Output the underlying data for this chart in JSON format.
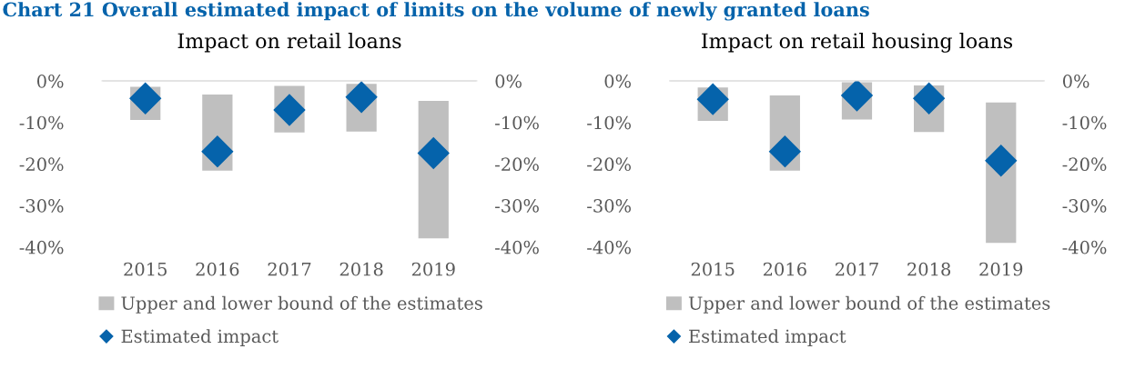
{
  "chart_data": [
    {
      "type": "bar",
      "title": "Impact on retail loans",
      "annotations": [
        "Chart 21 Overall estimated impact of limits on the volume of newly granted loans"
      ],
      "categories": [
        "2015",
        "2016",
        "2017",
        "2018",
        "2019"
      ],
      "series": [
        {
          "name": "Upper and lower bound of the estimates",
          "color": "#bfbfbf",
          "base": [
            -1.4,
            -3.3,
            -1.2,
            -0.7,
            -4.8
          ],
          "values": [
            -8.0,
            -18.3,
            -11.2,
            -11.5,
            -33.1
          ]
        },
        {
          "name": "Estimated impact",
          "type": "scatter",
          "color": "#0563ab",
          "marker": "diamond",
          "values": [
            -4.2,
            -17.0,
            -7.0,
            -3.9,
            -17.4
          ]
        }
      ],
      "ylim": [
        -40,
        0
      ],
      "yticks": [
        {
          "value": 0,
          "label": "0%"
        },
        {
          "value": -10,
          "label": "-10%"
        },
        {
          "value": -20,
          "label": "-20%"
        },
        {
          "value": -30,
          "label": "-30%"
        },
        {
          "value": -40,
          "label": "-40%"
        }
      ],
      "y2lim": [
        -40,
        0
      ],
      "y2ticks": [
        {
          "value": 0,
          "label": "0%"
        },
        {
          "value": -10,
          "label": "-10%"
        },
        {
          "value": -20,
          "label": "-20%"
        },
        {
          "value": -30,
          "label": "-30%"
        },
        {
          "value": -40,
          "label": "-40%"
        }
      ],
      "legend": "bottom",
      "grid": false
    },
    {
      "type": "bar",
      "title": "Impact on retail housing loans",
      "categories": [
        "2015",
        "2016",
        "2017",
        "2018",
        "2019"
      ],
      "series": [
        {
          "name": "Upper and lower bound of the estimates",
          "color": "#bfbfbf",
          "base": [
            -1.6,
            -3.5,
            -0.3,
            -1.1,
            -5.2
          ],
          "values": [
            -8.0,
            -18.1,
            -9.0,
            -11.2,
            -33.8
          ]
        },
        {
          "name": "Estimated impact",
          "type": "scatter",
          "color": "#0563ab",
          "marker": "diamond",
          "values": [
            -4.4,
            -17.0,
            -3.5,
            -4.2,
            -19.2
          ]
        }
      ],
      "ylim": [
        -40,
        0
      ],
      "yticks": [
        {
          "value": 0,
          "label": "0%"
        },
        {
          "value": -10,
          "label": "-10%"
        },
        {
          "value": -20,
          "label": "-20%"
        },
        {
          "value": -30,
          "label": "-30%"
        },
        {
          "value": -40,
          "label": "-40%"
        }
      ],
      "y2lim": [
        -40,
        0
      ],
      "y2ticks": [
        {
          "value": 0,
          "label": "0%"
        },
        {
          "value": -10,
          "label": "-10%"
        },
        {
          "value": -20,
          "label": "-20%"
        },
        {
          "value": -30,
          "label": "-30%"
        },
        {
          "value": -40,
          "label": "-40%"
        }
      ],
      "legend": "bottom",
      "grid": false
    }
  ]
}
